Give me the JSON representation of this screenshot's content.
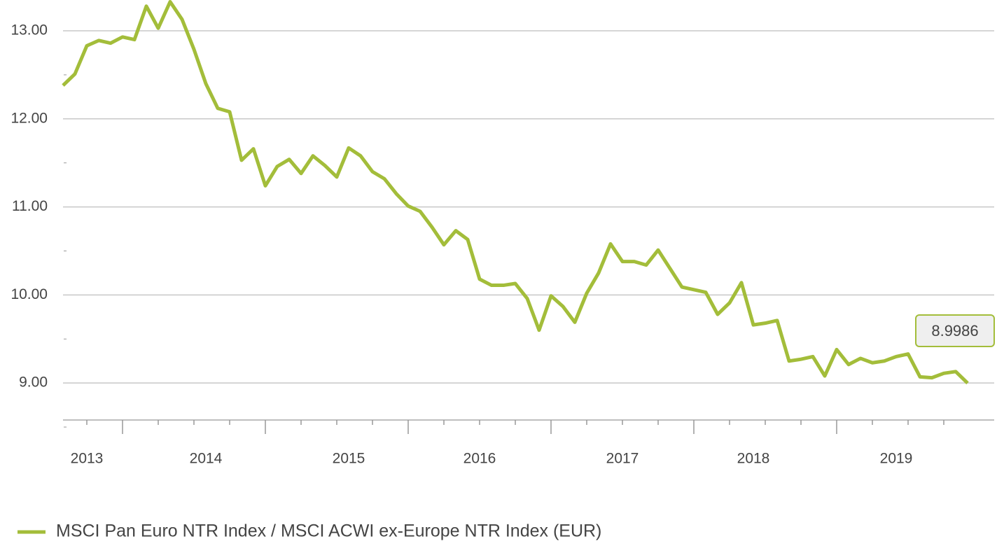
{
  "chart_data": {
    "type": "line",
    "categories": [
      null,
      null,
      "2013",
      null,
      null,
      null,
      null,
      null,
      null,
      null,
      null,
      null,
      "2014",
      null,
      null,
      null,
      null,
      null,
      null,
      null,
      null,
      null,
      null,
      null,
      "2015",
      null,
      null,
      null,
      null,
      null,
      null,
      null,
      null,
      null,
      null,
      "2016",
      null,
      null,
      null,
      null,
      null,
      null,
      null,
      null,
      null,
      null,
      null,
      "2017",
      null,
      null,
      null,
      null,
      null,
      null,
      null,
      null,
      null,
      null,
      "2018",
      null,
      null,
      null,
      null,
      null,
      null,
      null,
      null,
      null,
      null,
      null,
      "2019",
      null,
      null,
      null,
      null,
      null,
      null
    ],
    "series": [
      {
        "name": "MSCI Pan Euro NTR Index / MSCI ACWI ex-Europe NTR Index (EUR)",
        "color": "#a3bd3a",
        "values": [
          12.38,
          12.51,
          12.83,
          12.89,
          12.86,
          12.93,
          12.9,
          13.28,
          13.03,
          13.33,
          13.13,
          12.79,
          12.4,
          12.12,
          12.08,
          11.53,
          11.66,
          11.24,
          11.46,
          11.54,
          11.38,
          11.58,
          11.47,
          11.34,
          11.67,
          11.58,
          11.4,
          11.32,
          11.15,
          11.01,
          10.95,
          10.77,
          10.57,
          10.73,
          10.63,
          10.18,
          10.11,
          10.11,
          10.13,
          9.96,
          9.6,
          9.99,
          9.87,
          9.69,
          10.02,
          10.25,
          10.58,
          10.38,
          10.38,
          10.34,
          10.51,
          10.3,
          10.09,
          10.06,
          10.03,
          9.78,
          9.91,
          10.14,
          9.66,
          9.68,
          9.71,
          9.25,
          9.27,
          9.3,
          9.08,
          9.38,
          9.21,
          9.28,
          9.23,
          9.25,
          9.3,
          9.33,
          9.07,
          9.06,
          9.11,
          9.13,
          8.9986
        ]
      }
    ],
    "ylim": [
      8.58,
      13.35
    ],
    "yticks": [
      {
        "value": 9,
        "label": "9.00"
      },
      {
        "value": 10,
        "label": "10.00"
      },
      {
        "value": 11,
        "label": "11.00"
      },
      {
        "value": 12,
        "label": "12.00"
      },
      {
        "value": 13,
        "label": "13.00"
      }
    ],
    "grid": true
  }
}
